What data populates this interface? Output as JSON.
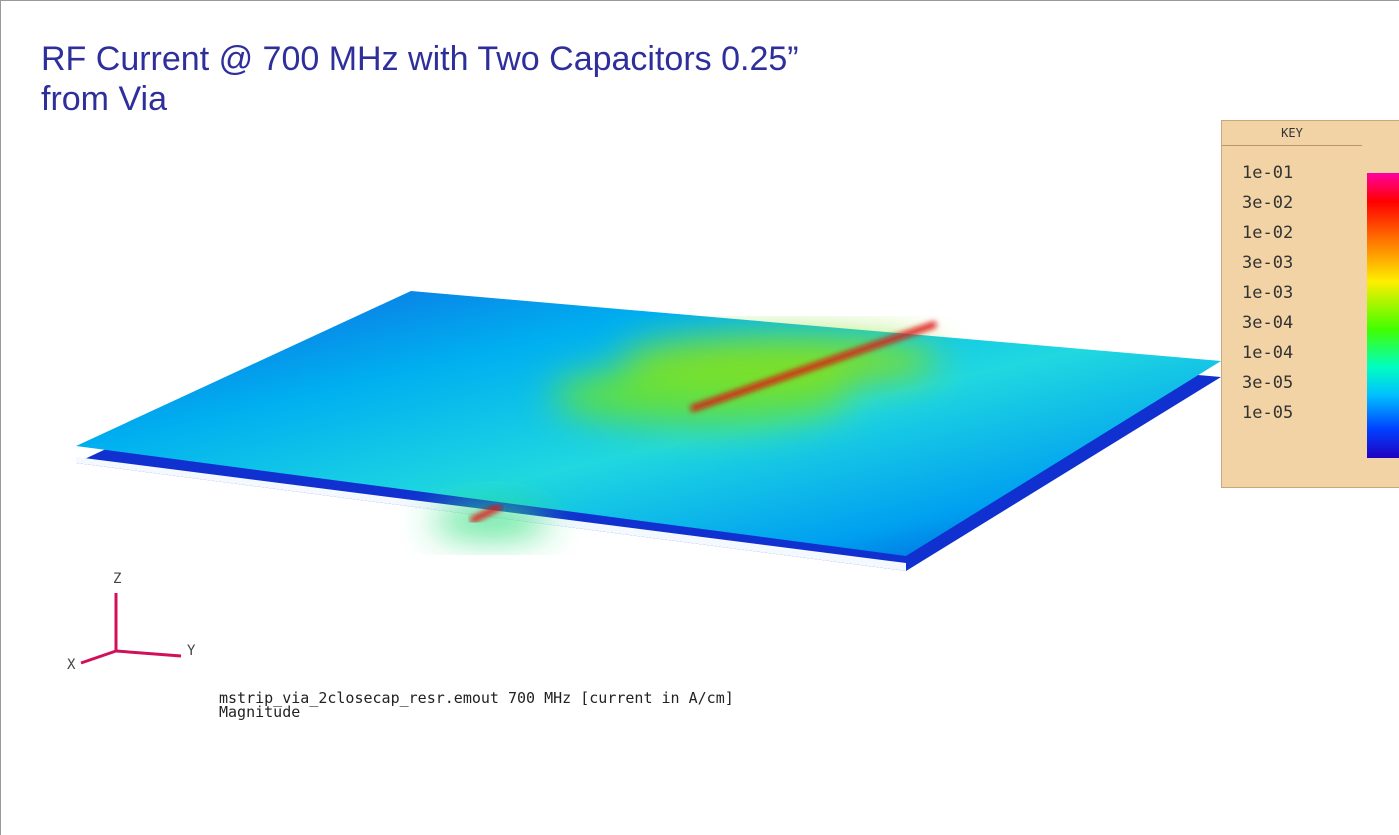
{
  "slide": {
    "title": "RF Current @ 700 MHz with Two Capacitors 0.25” from Via",
    "key": {
      "title": "KEY",
      "labels": [
        "1e-01",
        "3e-02",
        "1e-02",
        "3e-03",
        "1e-03",
        "3e-04",
        "1e-04",
        "3e-05",
        "1e-05"
      ]
    },
    "axes": {
      "z": "Z",
      "x": "X",
      "y": "Y"
    },
    "caption": [
      "mstrip_via_2closecap_resr.emout 700 MHz [current in A/cm]",
      "Magnitude"
    ]
  }
}
